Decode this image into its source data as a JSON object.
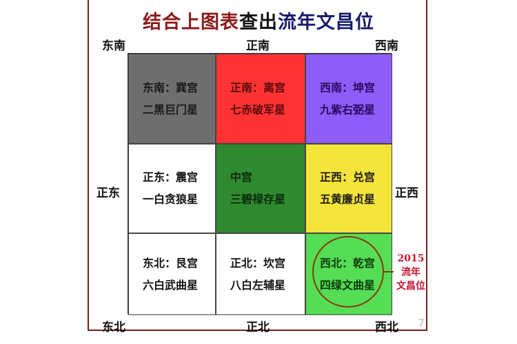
{
  "title": {
    "part1": "结合上图表",
    "part2": "查出",
    "part3": "流年文昌位"
  },
  "directions": {
    "se": "东南",
    "s": "正南",
    "sw": "西南",
    "e": "正东",
    "w": "正西",
    "ne": "东北",
    "n": "正北",
    "nw": "西北"
  },
  "cells": [
    {
      "palace": "东南：巽宫",
      "star": "二黑巨门星",
      "bg": "#6e6e6e",
      "color": "#1a1a1a"
    },
    {
      "palace": "正南：离宫",
      "star": "七赤破军星",
      "bg": "#ff3333",
      "color": "#5a0a0a"
    },
    {
      "palace": "西南：坤宫",
      "star": "九紫右弼星",
      "bg": "#8e5cf7",
      "color": "#2a0a60"
    },
    {
      "palace": "正东：震宫",
      "star": "一白贪狼星",
      "bg": "#ffffff",
      "color": "#111111"
    },
    {
      "palace": "中宫",
      "star": "三碧禄存星",
      "bg": "#2f8a2f",
      "color": "#0c2a0c"
    },
    {
      "palace": "正西：兑宫",
      "star": "五黄廉贞星",
      "bg": "#f5e43a",
      "color": "#1a1a1a"
    },
    {
      "palace": "东北：艮宫",
      "star": "六白武曲星",
      "bg": "#ffffff",
      "color": "#111111"
    },
    {
      "palace": "正北：坎宫",
      "star": "八白左辅星",
      "bg": "#ffffff",
      "color": "#111111"
    },
    {
      "palace": "西北：乾宫",
      "star": "四绿文曲星",
      "bg": "#55dd55",
      "color": "#0c3a0c"
    }
  ],
  "highlight_note": {
    "year": "2015",
    "line1": "流年",
    "line2": "文昌位",
    "color": "#c8102e"
  },
  "page_number": "7"
}
